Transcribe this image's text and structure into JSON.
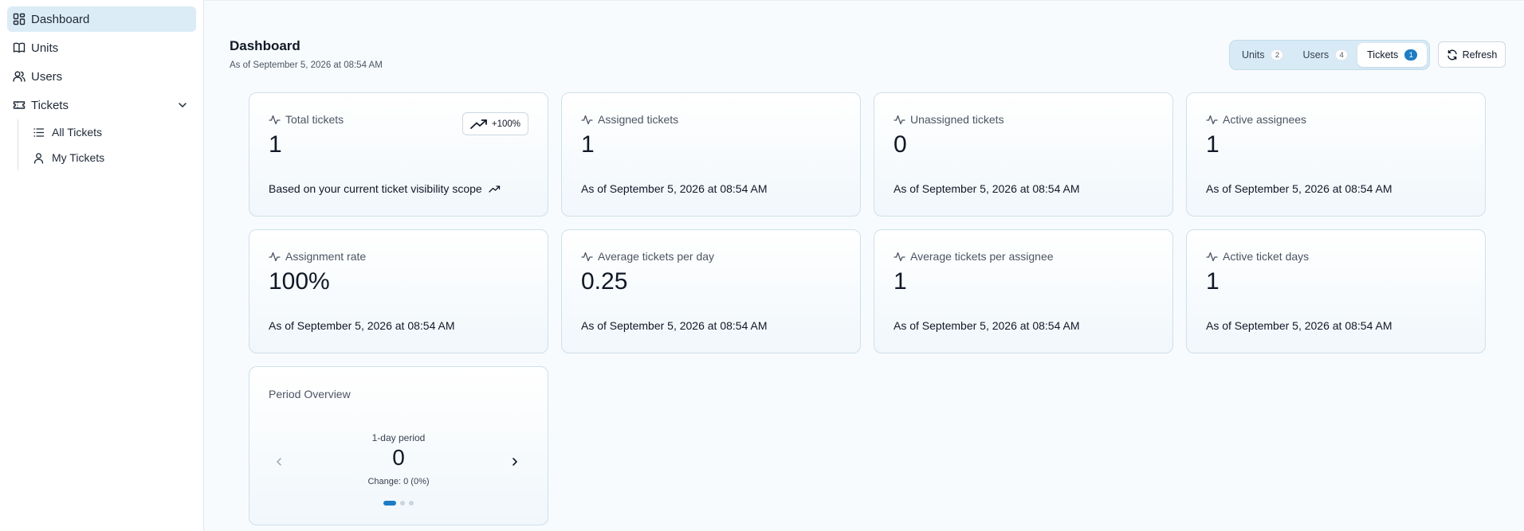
{
  "sidebar": {
    "items": [
      {
        "label": "Dashboard",
        "icon": "dashboard-icon",
        "active": true
      },
      {
        "label": "Units",
        "icon": "book-icon"
      },
      {
        "label": "Users",
        "icon": "users-icon"
      },
      {
        "label": "Tickets",
        "icon": "ticket-icon",
        "expanded": true
      }
    ],
    "tickets_sub": [
      {
        "label": "All Tickets",
        "icon": "list-icon"
      },
      {
        "label": "My Tickets",
        "icon": "user-icon"
      }
    ]
  },
  "header": {
    "title": "Dashboard",
    "subtitle": "As of September 5, 2026 at 08:54 AM"
  },
  "segment": {
    "tabs": [
      {
        "label": "Units",
        "count": "2"
      },
      {
        "label": "Users",
        "count": "4"
      },
      {
        "label": "Tickets",
        "count": "1",
        "active": true
      }
    ],
    "refresh_label": "Refresh"
  },
  "cards": [
    {
      "title": "Total tickets",
      "value": "1",
      "footer": "Based on your current ticket visibility scope",
      "trend": "+100%"
    },
    {
      "title": "Assigned tickets",
      "value": "1",
      "footer": "As of September 5, 2026 at 08:54 AM"
    },
    {
      "title": "Unassigned tickets",
      "value": "0",
      "footer": "As of September 5, 2026 at 08:54 AM"
    },
    {
      "title": "Active assignees",
      "value": "1",
      "footer": "As of September 5, 2026 at 08:54 AM"
    },
    {
      "title": "Assignment rate",
      "value": "100%",
      "footer": "As of September 5, 2026 at 08:54 AM"
    },
    {
      "title": "Average tickets per day",
      "value": "0.25",
      "footer": "As of September 5, 2026 at 08:54 AM"
    },
    {
      "title": "Average tickets per assignee",
      "value": "1",
      "footer": "As of September 5, 2026 at 08:54 AM"
    },
    {
      "title": "Active ticket days",
      "value": "1",
      "footer": "As of September 5, 2026 at 08:54 AM"
    }
  ],
  "period": {
    "title": "Period Overview",
    "label": "1-day period",
    "value": "0",
    "change": "Change: 0 (0%)",
    "page_index": 0,
    "page_count": 3
  },
  "colors": {
    "accent": "#1d7cc3",
    "active_nav_bg": "#dcecf6",
    "segment_bg": "#d8eaf5",
    "card_border": "#cfe0ea"
  }
}
